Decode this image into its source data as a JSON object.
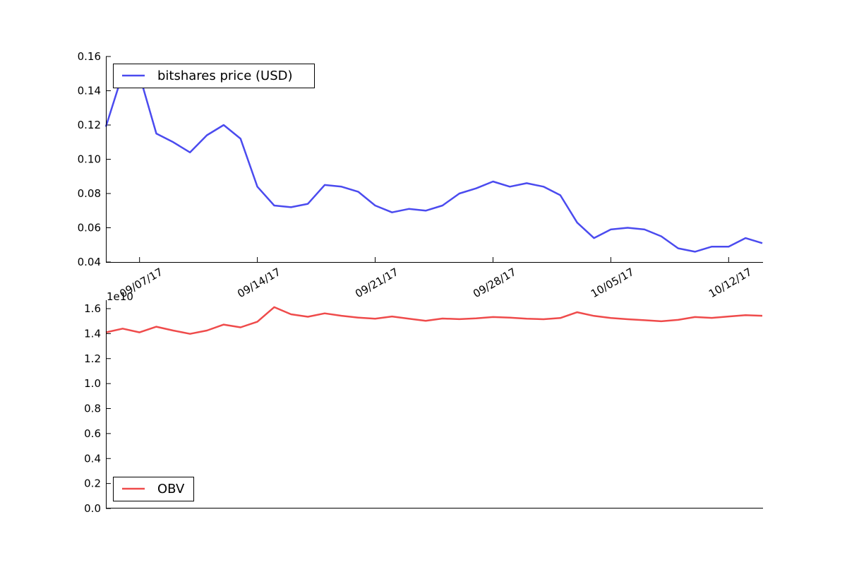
{
  "chart_data": [
    {
      "type": "line",
      "x": [
        "2017-09-05",
        "2017-09-06",
        "2017-09-07",
        "2017-09-08",
        "2017-09-09",
        "2017-09-10",
        "2017-09-11",
        "2017-09-12",
        "2017-09-13",
        "2017-09-14",
        "2017-09-15",
        "2017-09-16",
        "2017-09-17",
        "2017-09-18",
        "2017-09-19",
        "2017-09-20",
        "2017-09-21",
        "2017-09-22",
        "2017-09-23",
        "2017-09-24",
        "2017-09-25",
        "2017-09-26",
        "2017-09-27",
        "2017-09-28",
        "2017-09-29",
        "2017-09-30",
        "2017-10-01",
        "2017-10-02",
        "2017-10-03",
        "2017-10-04",
        "2017-10-05",
        "2017-10-06",
        "2017-10-07",
        "2017-10-08",
        "2017-10-09",
        "2017-10-10",
        "2017-10-11",
        "2017-10-12",
        "2017-10-13",
        "2017-10-14"
      ],
      "series": [
        {
          "name": "bitshares price (USD)",
          "color": "#4b4bef",
          "values": [
            0.119,
            0.15,
            0.149,
            0.115,
            0.11,
            0.104,
            0.114,
            0.12,
            0.112,
            0.084,
            0.073,
            0.072,
            0.074,
            0.085,
            0.084,
            0.081,
            0.073,
            0.069,
            0.071,
            0.07,
            0.073,
            0.08,
            0.083,
            0.087,
            0.084,
            0.086,
            0.084,
            0.079,
            0.063,
            0.054,
            0.059,
            0.06,
            0.059,
            0.055,
            0.048,
            0.046,
            0.049,
            0.049,
            0.054,
            0.051
          ]
        }
      ],
      "ylim": [
        0.04,
        0.16
      ],
      "yticks": [
        "0.04",
        "0.06",
        "0.08",
        "0.10",
        "0.12",
        "0.14",
        "0.16"
      ],
      "xticks": [
        {
          "date": "2017-09-07",
          "label": "09/07/17"
        },
        {
          "date": "2017-09-14",
          "label": "09/14/17"
        },
        {
          "date": "2017-09-21",
          "label": "09/21/17"
        },
        {
          "date": "2017-09-28",
          "label": "09/28/17"
        },
        {
          "date": "2017-10-05",
          "label": "10/05/17"
        },
        {
          "date": "2017-10-12",
          "label": "10/12/17"
        }
      ],
      "legend_position": "top-left",
      "grid": false
    },
    {
      "type": "line",
      "x": [
        "2017-09-05",
        "2017-09-06",
        "2017-09-07",
        "2017-09-08",
        "2017-09-09",
        "2017-09-10",
        "2017-09-11",
        "2017-09-12",
        "2017-09-13",
        "2017-09-14",
        "2017-09-15",
        "2017-09-16",
        "2017-09-17",
        "2017-09-18",
        "2017-09-19",
        "2017-09-20",
        "2017-09-21",
        "2017-09-22",
        "2017-09-23",
        "2017-09-24",
        "2017-09-25",
        "2017-09-26",
        "2017-09-27",
        "2017-09-28",
        "2017-09-29",
        "2017-09-30",
        "2017-10-01",
        "2017-10-02",
        "2017-10-03",
        "2017-10-04",
        "2017-10-05",
        "2017-10-06",
        "2017-10-07",
        "2017-10-08",
        "2017-10-09",
        "2017-10-10",
        "2017-10-11",
        "2017-10-12",
        "2017-10-13",
        "2017-10-14"
      ],
      "series": [
        {
          "name": "OBV",
          "color": "#ef4b4b",
          "values": [
            1.41,
            1.44,
            1.41,
            1.455,
            1.425,
            1.398,
            1.425,
            1.472,
            1.45,
            1.495,
            1.612,
            1.555,
            1.535,
            1.562,
            1.543,
            1.528,
            1.52,
            1.537,
            1.52,
            1.503,
            1.521,
            1.516,
            1.522,
            1.533,
            1.528,
            1.52,
            1.515,
            1.525,
            1.571,
            1.542,
            1.525,
            1.515,
            1.507,
            1.499,
            1.51,
            1.533,
            1.526,
            1.537,
            1.548,
            1.543
          ]
        }
      ],
      "y_scale_label": "1e10",
      "ylim": [
        0.0,
        1.6
      ],
      "yticks": [
        "0.0",
        "0.2",
        "0.4",
        "0.6",
        "0.8",
        "1.0",
        "1.2",
        "1.4",
        "1.6"
      ],
      "legend_position": "bottom-left",
      "grid": false
    }
  ]
}
